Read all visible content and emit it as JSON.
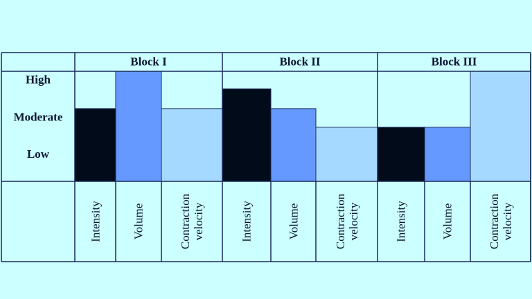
{
  "chart_data": {
    "type": "bar",
    "categories": [
      "Block I",
      "Block II",
      "Block III"
    ],
    "series": [
      {
        "name": "Intensity",
        "color": "#020b1a",
        "values": [
          2.25,
          2.78,
          1.75
        ]
      },
      {
        "name": "Volume",
        "color": "#6699ff",
        "values": [
          3.25,
          2.25,
          1.75
        ]
      },
      {
        "name": "Contraction velocity",
        "color": "#a6d9ff",
        "values": [
          2.25,
          1.75,
          3.25
        ]
      }
    ],
    "ylim": [
      0.3,
      3.25
    ],
    "yticks": [
      {
        "value": 1,
        "label": "Low"
      },
      {
        "value": 2,
        "label": "Moderate"
      },
      {
        "value": 3,
        "label": "High"
      }
    ]
  }
}
